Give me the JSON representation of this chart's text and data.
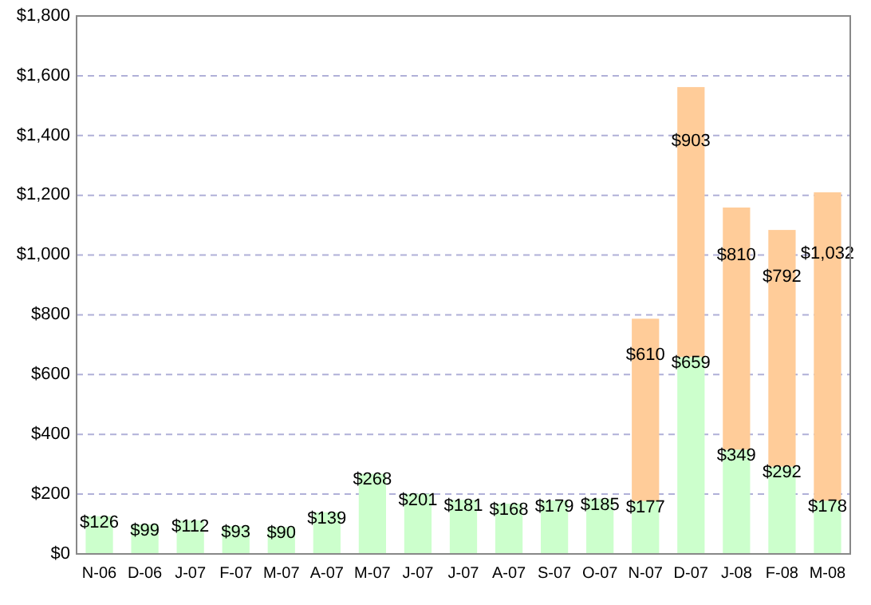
{
  "chart_data": {
    "type": "bar",
    "stacked": true,
    "categories": [
      "N-06",
      "D-06",
      "J-07",
      "F-07",
      "M-07",
      "A-07",
      "M-07",
      "J-07",
      "J-07",
      "A-07",
      "S-07",
      "O-07",
      "N-07",
      "D-07",
      "J-08",
      "F-08",
      "M-08"
    ],
    "series": [
      {
        "color": "#ccffcc",
        "values": [
          126,
          99,
          112,
          93,
          90,
          139,
          268,
          201,
          181,
          168,
          179,
          185,
          177,
          659,
          349,
          292,
          178
        ],
        "value_labels": [
          "$126",
          "$99",
          "$112",
          "$93",
          "$90",
          "$139",
          "$268",
          "$201",
          "$181",
          "$168",
          "$179",
          "$185",
          "$177",
          "$659",
          "$349",
          "$292",
          "$178"
        ]
      },
      {
        "color": "#ffcc99",
        "values": [
          null,
          null,
          null,
          null,
          null,
          null,
          null,
          null,
          null,
          null,
          null,
          null,
          610,
          903,
          810,
          792,
          1032
        ],
        "value_labels": [
          null,
          null,
          null,
          null,
          null,
          null,
          null,
          null,
          null,
          null,
          null,
          null,
          "$610",
          "$903",
          "$810",
          "$792",
          "$1,032"
        ]
      }
    ],
    "ylim": [
      0,
      1800
    ],
    "yticks": [
      {
        "value": 0,
        "label": "$0"
      },
      {
        "value": 200,
        "label": "$200"
      },
      {
        "value": 400,
        "label": "$400"
      },
      {
        "value": 600,
        "label": "$600"
      },
      {
        "value": 800,
        "label": "$800"
      },
      {
        "value": 1000,
        "label": "$1,000"
      },
      {
        "value": 1200,
        "label": "$1,200"
      },
      {
        "value": 1400,
        "label": "$1,400"
      },
      {
        "value": 1600,
        "label": "$1,600"
      },
      {
        "value": 1800,
        "label": "$1,800"
      }
    ],
    "grid": "y"
  }
}
